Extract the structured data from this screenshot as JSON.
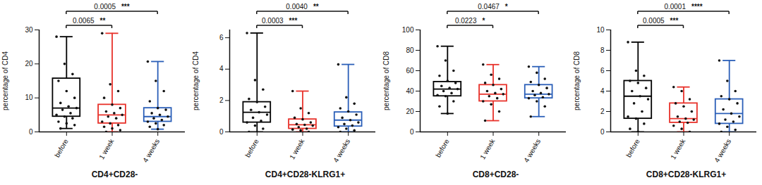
{
  "chart_data": [
    {
      "type": "box",
      "xlabel": "CD4+CD28-",
      "ylabel": "percentage of CD4",
      "categories": [
        "before",
        "1 week",
        "4 weeks"
      ],
      "colors": [
        "#000000",
        "#e8322b",
        "#2b5fb8"
      ],
      "ylim": [
        0,
        30
      ],
      "yticks": [
        0,
        10,
        20,
        30
      ],
      "boxes": [
        {
          "min": 1,
          "q1": 4.5,
          "median": 7,
          "q3": 15.7,
          "max": 28
        },
        {
          "min": 0,
          "q1": 2.5,
          "median": 5,
          "q3": 8,
          "max": 29
        },
        {
          "min": 0.8,
          "q1": 3,
          "median": 4.5,
          "q3": 7,
          "max": 20.7
        }
      ],
      "points": [
        [
          28,
          20,
          17,
          15,
          12,
          10,
          8.5,
          7.5,
          7,
          6.5,
          5.5,
          5,
          4.5,
          4,
          3,
          2.5,
          2,
          1
        ],
        [
          29,
          14,
          12,
          10,
          8,
          7,
          6,
          5.5,
          5,
          4.5,
          4,
          3,
          2.5,
          2,
          1.5,
          1,
          0.5,
          0
        ],
        [
          20.7,
          15,
          12,
          9,
          7,
          6.5,
          5.5,
          5,
          4.5,
          4,
          3.5,
          3,
          2.5,
          2,
          1.5,
          0.8
        ]
      ],
      "annotations": [
        {
          "from": "before",
          "to": "1 week",
          "p": "0.0065",
          "stars": "**"
        },
        {
          "from": "before",
          "to": "4 weeks",
          "p": "0.0005",
          "stars": "***"
        }
      ]
    },
    {
      "type": "box",
      "xlabel": "CD4+CD28-KLRG1+",
      "ylabel": "percentage of CD4",
      "categories": [
        "before",
        "1 week",
        "4 weeks"
      ],
      "colors": [
        "#000000",
        "#e8322b",
        "#2b5fb8"
      ],
      "ylim": [
        0,
        6.5
      ],
      "yticks": [
        0,
        2,
        4,
        6
      ],
      "boxes": [
        {
          "min": 0,
          "q1": 0.6,
          "median": 1.25,
          "q3": 1.9,
          "max": 6.3
        },
        {
          "min": 0,
          "q1": 0.2,
          "median": 0.45,
          "q3": 0.8,
          "max": 2.6
        },
        {
          "min": 0,
          "q1": 0.35,
          "median": 0.75,
          "q3": 1.25,
          "max": 4.3
        }
      ],
      "points": [
        [
          6.3,
          3.3,
          2.7,
          2.1,
          1.9,
          1.6,
          1.4,
          1.25,
          1.1,
          0.9,
          0.7,
          0.6,
          0.4,
          0.2,
          0
        ],
        [
          2.6,
          1.5,
          1.2,
          0.9,
          0.8,
          0.6,
          0.5,
          0.45,
          0.4,
          0.3,
          0.2,
          0.15,
          0.1,
          0
        ],
        [
          4.3,
          2.2,
          1.8,
          1.5,
          1.3,
          1.1,
          0.9,
          0.75,
          0.6,
          0.5,
          0.4,
          0.3,
          0.2,
          0.1,
          0
        ]
      ],
      "annotations": [
        {
          "from": "before",
          "to": "1 week",
          "p": "0.0003",
          "stars": "***"
        },
        {
          "from": "before",
          "to": "4 weeks",
          "p": "0.0040",
          "stars": "**"
        }
      ]
    },
    {
      "type": "box",
      "xlabel": "CD8+CD28-",
      "ylabel": "percentage of CD8",
      "categories": [
        "before",
        "1 week",
        "4 weeks"
      ],
      "colors": [
        "#000000",
        "#e8322b",
        "#2b5fb8"
      ],
      "ylim": [
        0,
        100
      ],
      "yticks": [
        0,
        20,
        40,
        60,
        80,
        100
      ],
      "boxes": [
        {
          "min": 18,
          "q1": 35,
          "median": 42,
          "q3": 49,
          "max": 84
        },
        {
          "min": 11,
          "q1": 30,
          "median": 37,
          "q3": 46,
          "max": 66
        },
        {
          "min": 15,
          "q1": 33,
          "median": 37,
          "q3": 46,
          "max": 64
        }
      ],
      "points": [
        [
          84,
          70,
          60,
          55,
          50,
          48,
          45,
          43,
          42,
          40,
          38,
          36,
          35,
          30,
          25,
          18
        ],
        [
          66,
          56,
          52,
          48,
          46,
          42,
          40,
          38,
          37,
          35,
          33,
          30,
          27,
          20,
          11
        ],
        [
          64,
          58,
          52,
          49,
          46,
          43,
          40,
          38,
          37,
          36,
          34,
          33,
          30,
          25,
          15
        ]
      ],
      "annotations": [
        {
          "from": "before",
          "to": "1 week",
          "p": "0.0223",
          "stars": "*"
        },
        {
          "from": "before",
          "to": "4 weeks",
          "p": "0.0467",
          "stars": "*"
        }
      ]
    },
    {
      "type": "box",
      "xlabel": "CD8+CD28-KLRG1+",
      "ylabel": "percentage of CD8",
      "categories": [
        "before",
        "1 week",
        "4 weeks"
      ],
      "colors": [
        "#000000",
        "#e8322b",
        "#2b5fb8"
      ],
      "ylim": [
        0,
        10
      ],
      "yticks": [
        0,
        2,
        4,
        6,
        8,
        10
      ],
      "boxes": [
        {
          "min": 0,
          "q1": 1.3,
          "median": 3.5,
          "q3": 5,
          "max": 8.8
        },
        {
          "min": 0,
          "q1": 0.9,
          "median": 1.3,
          "q3": 2.8,
          "max": 4.4
        },
        {
          "min": 0,
          "q1": 0.8,
          "median": 1.8,
          "q3": 3.2,
          "max": 7
        }
      ],
      "points": [
        [
          8.8,
          6,
          5.5,
          5,
          4.8,
          4.3,
          4,
          3.5,
          3.2,
          2.8,
          2,
          1.5,
          1.3,
          0.8,
          0.3,
          0
        ],
        [
          4.4,
          4,
          3.2,
          2.8,
          2.5,
          2,
          1.5,
          1.3,
          1.2,
          1,
          0.9,
          0.6,
          0.3,
          0
        ],
        [
          7,
          5,
          4,
          3.5,
          3.2,
          2.8,
          2.2,
          1.8,
          1.5,
          1.2,
          1,
          0.8,
          0.5,
          0.2,
          0
        ]
      ],
      "annotations": [
        {
          "from": "before",
          "to": "1 week",
          "p": "0.0005",
          "stars": "***"
        },
        {
          "from": "before",
          "to": "4 weeks",
          "p": "0.0001",
          "stars": "****"
        }
      ]
    }
  ]
}
